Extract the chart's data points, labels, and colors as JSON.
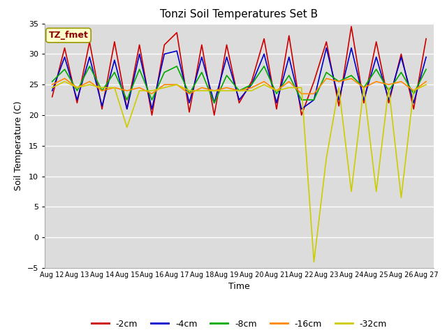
{
  "title": "Tonzi Soil Temperatures Set B",
  "xlabel": "Time",
  "ylabel": "Soil Temperature (C)",
  "ylim": [
    -5,
    35
  ],
  "ytick_values": [
    -5,
    0,
    5,
    10,
    15,
    20,
    25,
    30,
    35
  ],
  "xtick_labels": [
    "Aug 12",
    "Aug 13",
    "Aug 14",
    "Aug 15",
    "Aug 16",
    "Aug 17",
    "Aug 18",
    "Aug 19",
    "Aug 20",
    "Aug 21",
    "Aug 22",
    "Aug 23",
    "Aug 24",
    "Aug 25",
    "Aug 26",
    "Aug 27"
  ],
  "legend_label": "TZ_fmet",
  "series_labels": [
    "-2cm",
    "-4cm",
    "-8cm",
    "-16cm",
    "-32cm"
  ],
  "series_colors": [
    "#cc0000",
    "#0000cc",
    "#00aa00",
    "#ff8800",
    "#cccc00"
  ],
  "plot_bg": "#dcdcdc",
  "fig_bg": "#ffffff",
  "neg2cm": [
    23.0,
    31.0,
    22.0,
    32.0,
    21.0,
    32.0,
    21.0,
    31.5,
    20.0,
    31.5,
    33.5,
    20.5,
    31.5,
    20.0,
    31.5,
    22.0,
    25.5,
    32.5,
    21.0,
    33.0,
    20.0,
    25.5,
    32.0,
    21.5,
    34.5,
    22.0,
    32.0,
    22.0,
    30.0,
    21.0,
    32.5
  ],
  "neg4cm": [
    24.0,
    29.5,
    22.5,
    29.5,
    21.5,
    29.0,
    21.0,
    30.0,
    21.0,
    30.0,
    30.5,
    22.0,
    29.5,
    22.0,
    29.5,
    22.5,
    25.0,
    30.0,
    22.0,
    29.5,
    21.0,
    22.5,
    31.0,
    22.5,
    31.0,
    22.5,
    29.5,
    22.5,
    29.5,
    22.0,
    29.5
  ],
  "neg8cm": [
    25.5,
    27.5,
    24.0,
    28.0,
    24.0,
    27.0,
    22.5,
    27.5,
    22.5,
    27.0,
    28.0,
    23.5,
    27.0,
    22.0,
    26.5,
    24.0,
    25.0,
    28.0,
    23.5,
    26.5,
    22.5,
    22.5,
    27.0,
    25.5,
    26.5,
    24.5,
    27.5,
    24.0,
    27.0,
    23.5,
    27.5
  ],
  "neg16cm": [
    25.0,
    26.0,
    24.5,
    25.5,
    24.0,
    24.5,
    24.0,
    24.5,
    23.5,
    25.0,
    25.0,
    23.5,
    24.5,
    24.0,
    24.5,
    24.0,
    24.5,
    25.5,
    24.0,
    25.5,
    23.5,
    23.5,
    26.0,
    25.5,
    26.0,
    24.5,
    25.5,
    25.0,
    25.5,
    24.0,
    25.5
  ],
  "neg32cm": [
    24.5,
    25.5,
    24.5,
    25.0,
    24.5,
    24.5,
    18.0,
    24.0,
    24.0,
    24.5,
    25.0,
    24.0,
    24.0,
    24.0,
    24.0,
    24.0,
    24.0,
    25.0,
    24.0,
    24.5,
    24.5,
    -4.0,
    13.0,
    24.5,
    7.5,
    24.5,
    7.5,
    24.5,
    6.5,
    24.0,
    25.0
  ]
}
